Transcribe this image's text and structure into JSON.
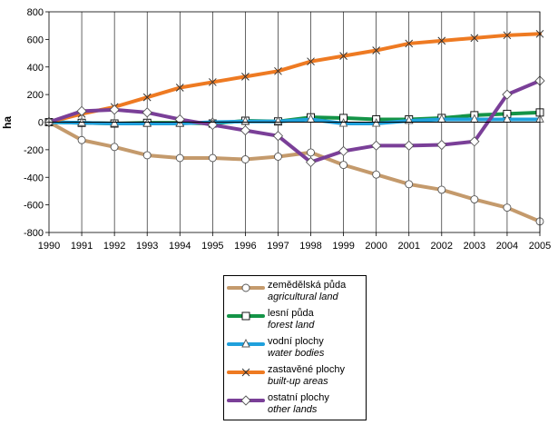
{
  "chart_data": {
    "type": "line",
    "ylabel": "ha",
    "xlabel": "",
    "ylim": [
      -800,
      800
    ],
    "yticks": [
      800,
      600,
      400,
      200,
      0,
      -200,
      -400,
      -600,
      -800
    ],
    "categories": [
      "1990",
      "1991",
      "1992",
      "1993",
      "1994",
      "1995",
      "1996",
      "1997",
      "1998",
      "1999",
      "2000",
      "2001",
      "2002",
      "2003",
      "2004",
      "2005"
    ],
    "grid": "vertical lines at each year",
    "legend_position": "bottom-center",
    "series": [
      {
        "name": "zemědělská půda",
        "name_en": "agricultural land",
        "color": "#C49A6C",
        "marker": "circle",
        "values": [
          0,
          -130,
          -180,
          -240,
          -260,
          -260,
          -270,
          -250,
          -220,
          -310,
          -380,
          -450,
          -490,
          -560,
          -620,
          -720
        ]
      },
      {
        "name": "lesní půda",
        "name_en": "forest land",
        "color": "#149447",
        "marker": "square",
        "values": [
          0,
          -5,
          -10,
          -5,
          -5,
          -10,
          10,
          5,
          35,
          30,
          20,
          20,
          30,
          50,
          60,
          70
        ]
      },
      {
        "name": "vodní plochy",
        "name_en": "water bodies",
        "color": "#1FA0DC",
        "marker": "triangle",
        "values": [
          0,
          -5,
          -10,
          -10,
          -10,
          0,
          5,
          5,
          20,
          -10,
          -10,
          10,
          20,
          20,
          20,
          20
        ]
      },
      {
        "name": "zastavěné plochy",
        "name_en": "built-up areas",
        "color": "#EE7A22",
        "marker": "x",
        "values": [
          0,
          60,
          110,
          180,
          250,
          290,
          330,
          370,
          440,
          480,
          520,
          570,
          590,
          610,
          630,
          640
        ]
      },
      {
        "name": "ostatní plochy",
        "name_en": "other lands",
        "color": "#7A3F98",
        "marker": "diamond",
        "values": [
          0,
          80,
          90,
          70,
          20,
          -20,
          -60,
          -100,
          -290,
          -210,
          -170,
          -170,
          -165,
          -140,
          200,
          300
        ]
      }
    ]
  }
}
